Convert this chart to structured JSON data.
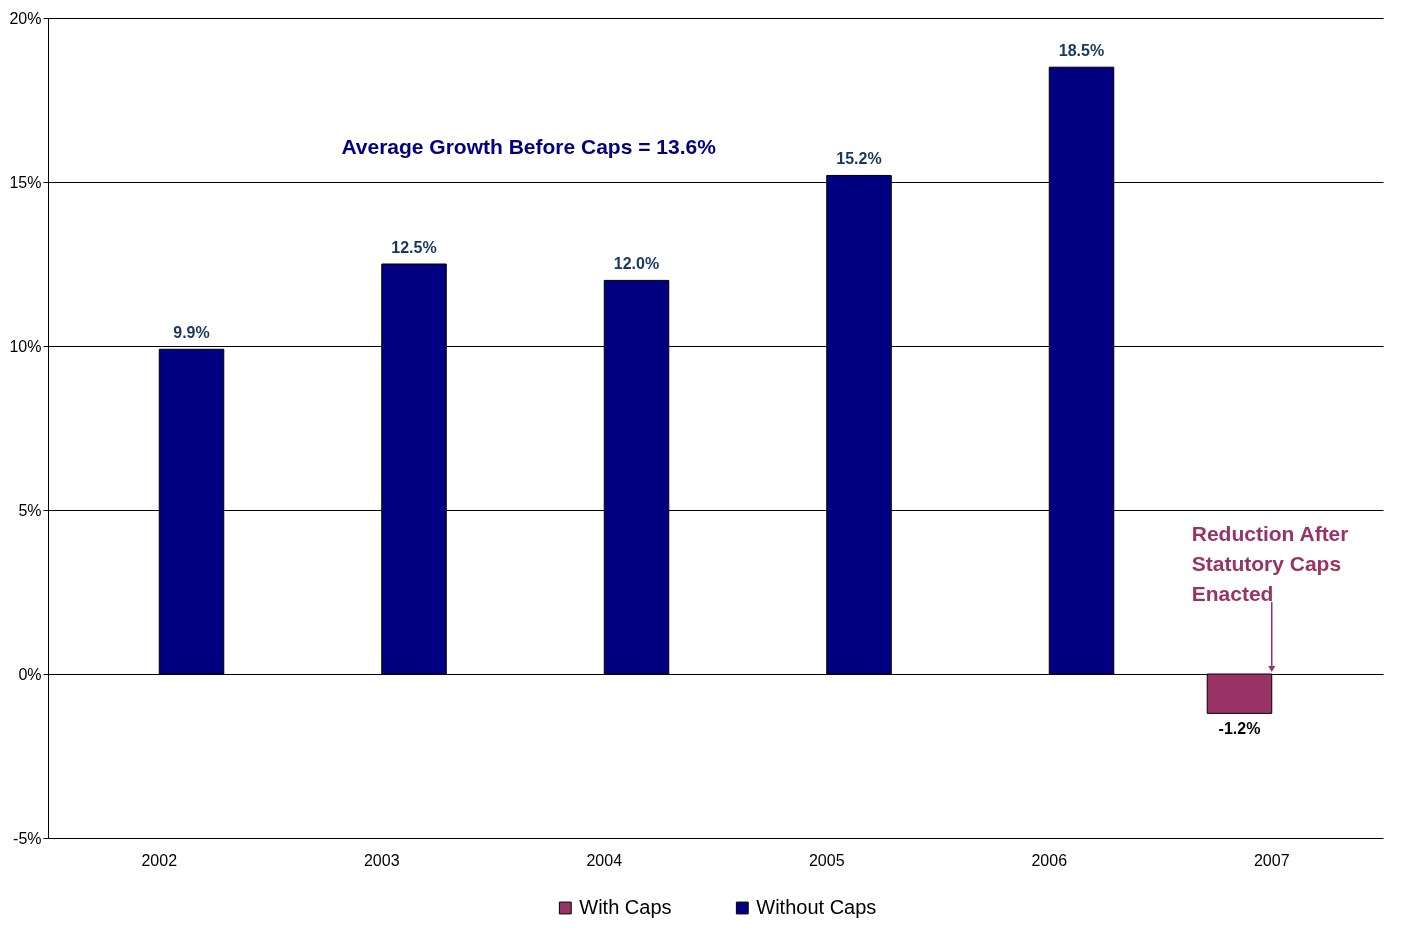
{
  "chart_data": {
    "type": "bar",
    "categories": [
      "2002",
      "2003",
      "2004",
      "2005",
      "2006",
      "2007"
    ],
    "series": [
      {
        "name": "With Caps",
        "color": "#993366",
        "values": [
          null,
          null,
          null,
          null,
          null,
          -1.2
        ],
        "value_labels": [
          null,
          null,
          null,
          null,
          null,
          "-1.2%"
        ]
      },
      {
        "name": "Without Caps",
        "color": "#000080",
        "values": [
          9.9,
          12.5,
          12.0,
          15.2,
          18.5,
          null
        ],
        "value_labels": [
          "9.9%",
          "12.5%",
          "12.0%",
          "15.2%",
          "18.5%",
          null
        ]
      }
    ],
    "ylim": [
      -5,
      20
    ],
    "yticks": [
      {
        "value": -5,
        "label": "-5%"
      },
      {
        "value": 0,
        "label": "0%"
      },
      {
        "value": 5,
        "label": "5%"
      },
      {
        "value": 10,
        "label": "10%"
      },
      {
        "value": 15,
        "label": "15%"
      },
      {
        "value": 20,
        "label": "20%"
      }
    ],
    "grid": "y",
    "legend": "bottom",
    "annotations": [
      "Average Growth Before Caps = 13.6%",
      {
        "text": "Reduction After Statutory Caps Enacted",
        "x": "2007",
        "y": 0
      }
    ]
  }
}
